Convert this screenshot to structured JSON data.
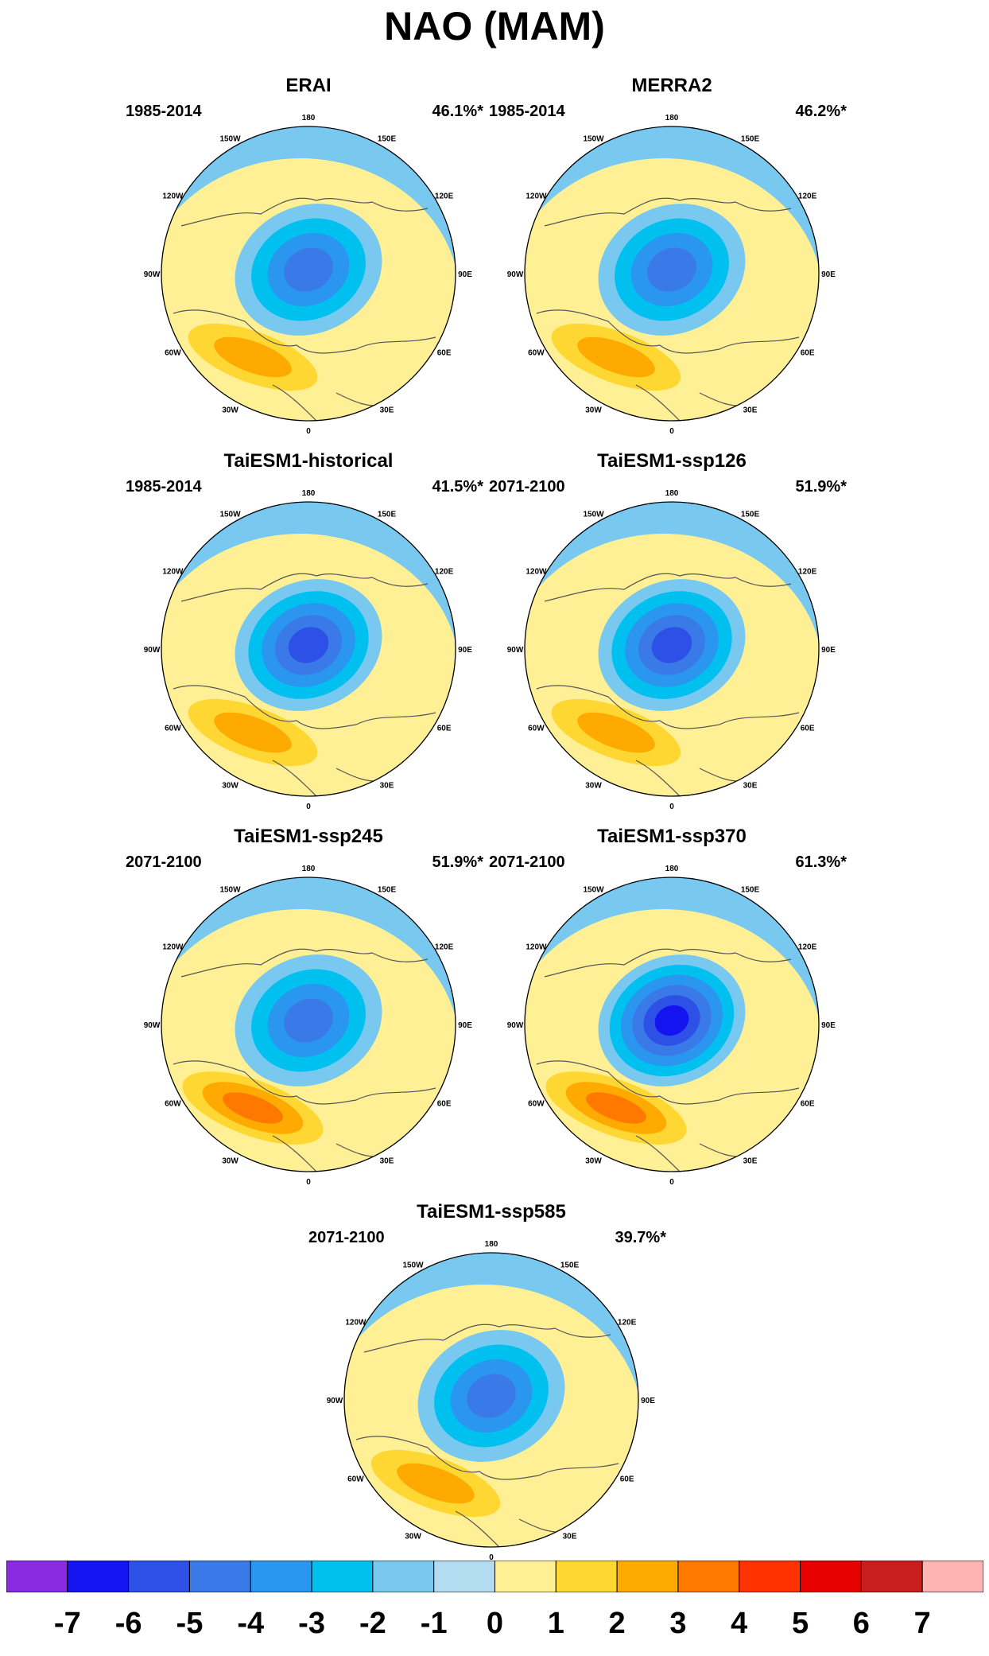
{
  "title": "NAO (MAM)",
  "lon_labels": [
    "180",
    "150E",
    "120E",
    "90E",
    "60E",
    "30E",
    "0",
    "30W",
    "60W",
    "90W",
    "120W",
    "150W"
  ],
  "panels": [
    {
      "name": "ERAI",
      "period": "1985-2014",
      "variance": "46.1%*",
      "pos_max": 3,
      "neg_min": -4
    },
    {
      "name": "MERRA2",
      "period": "1985-2014",
      "variance": "46.2%*",
      "pos_max": 3,
      "neg_min": -4
    },
    {
      "name": "TaiESM1-historical",
      "period": "1985-2014",
      "variance": "41.5%*",
      "pos_max": 3,
      "neg_min": -5
    },
    {
      "name": "TaiESM1-ssp126",
      "period": "2071-2100",
      "variance": "51.9%*",
      "pos_max": 3,
      "neg_min": -5
    },
    {
      "name": "TaiESM1-ssp245",
      "period": "2071-2100",
      "variance": "51.9%*",
      "pos_max": 4,
      "neg_min": -4
    },
    {
      "name": "TaiESM1-ssp370",
      "period": "2071-2100",
      "variance": "61.3%*",
      "pos_max": 4,
      "neg_min": -6
    },
    {
      "name": "TaiESM1-ssp585",
      "period": "2071-2100",
      "variance": "39.7%*",
      "pos_max": 3,
      "neg_min": -4
    }
  ],
  "colorbar": {
    "labels": [
      "-7",
      "-6",
      "-5",
      "-4",
      "-3",
      "-2",
      "-1",
      "0",
      "1",
      "2",
      "3",
      "4",
      "5",
      "6",
      "7"
    ],
    "colors": [
      "#8a2be2",
      "#1414f0",
      "#2d50e6",
      "#3a7ae8",
      "#2a96f0",
      "#00c0f0",
      "#78c8f0",
      "#b4dcf0",
      "#fff096",
      "#ffd732",
      "#ffaa00",
      "#ff7800",
      "#ff3200",
      "#e60000",
      "#c81e1e",
      "#ffb4b4"
    ]
  }
}
